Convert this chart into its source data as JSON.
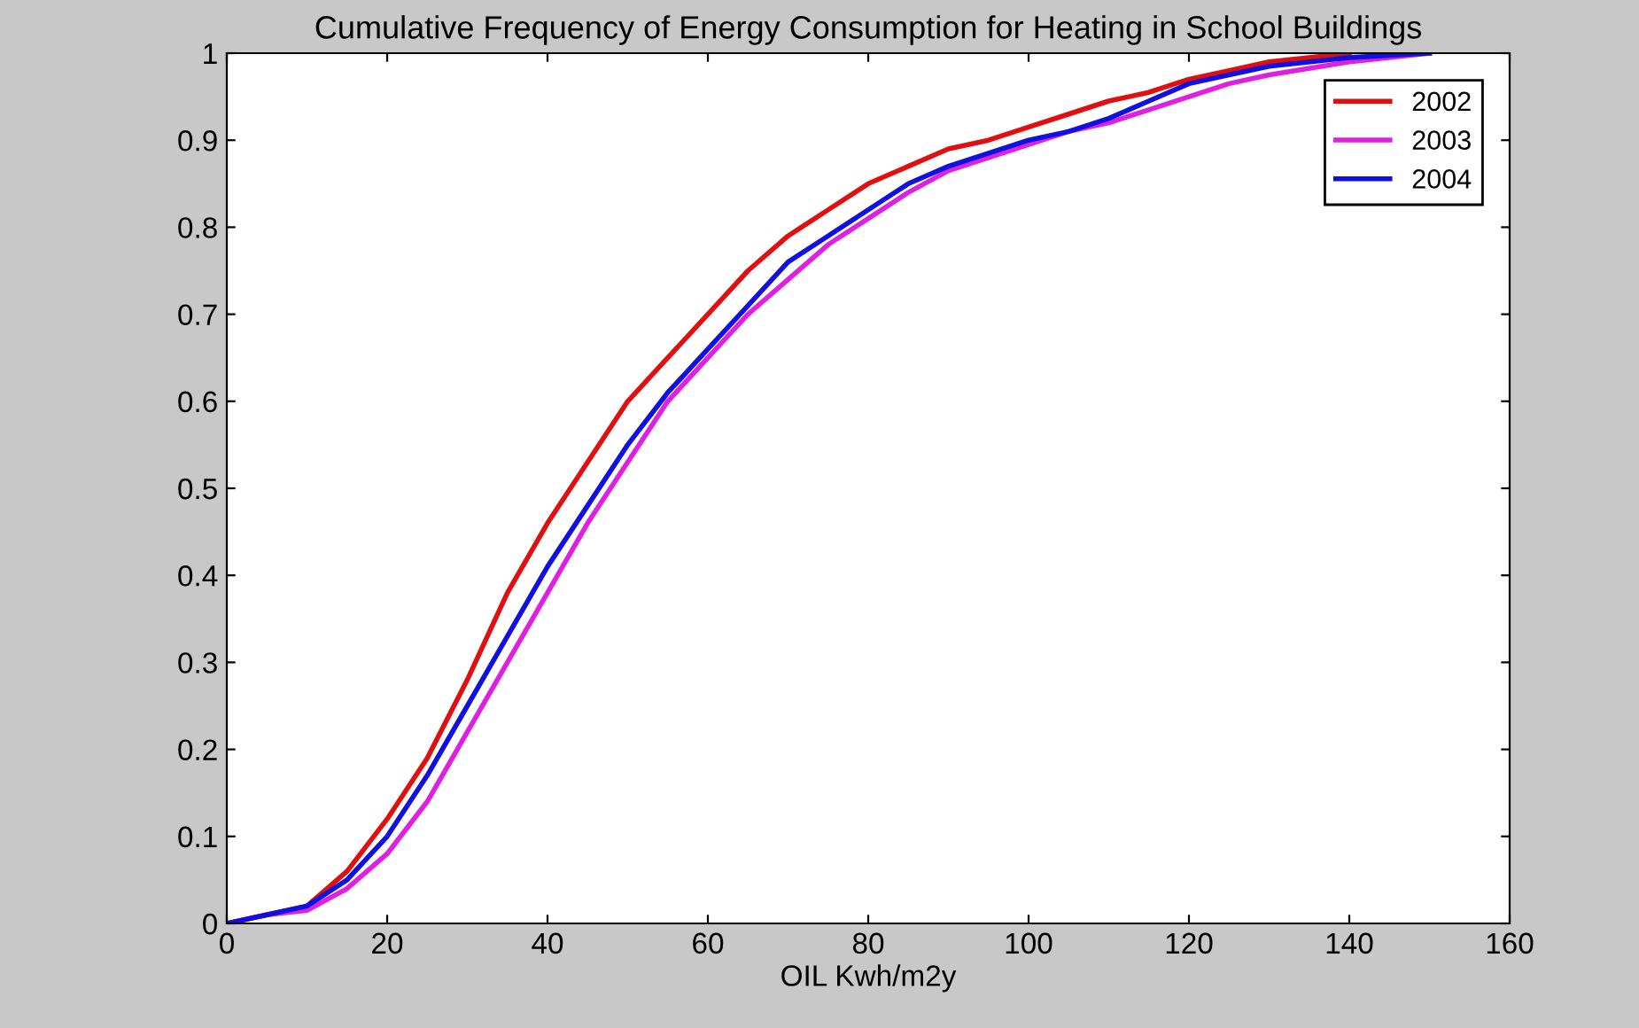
{
  "chart_data": {
    "type": "line",
    "title": "Cumulative Frequency of Energy Consumption for Heating in School Buildings",
    "xlabel": "OIL Kwh/m2y",
    "xlim": [
      0,
      160
    ],
    "xticks": [
      0,
      20,
      40,
      60,
      80,
      100,
      120,
      140,
      160
    ],
    "ylim": [
      0,
      1
    ],
    "yticks": [
      0,
      0.1,
      0.2,
      0.3,
      0.4,
      0.5,
      0.6,
      0.7,
      0.8,
      0.9,
      1
    ],
    "grid": false,
    "legend": "top right",
    "marker": "none",
    "line_style": "solid",
    "series": [
      {
        "name": "2002",
        "color": "#e01010",
        "x": [
          0,
          5,
          10,
          15,
          20,
          25,
          30,
          35,
          40,
          45,
          50,
          55,
          60,
          65,
          70,
          75,
          80,
          85,
          90,
          95,
          100,
          105,
          110,
          115,
          120,
          125,
          130,
          135,
          140
        ],
        "values": [
          0,
          0.01,
          0.02,
          0.06,
          0.12,
          0.19,
          0.28,
          0.38,
          0.46,
          0.53,
          0.6,
          0.65,
          0.7,
          0.75,
          0.79,
          0.82,
          0.85,
          0.87,
          0.89,
          0.9,
          0.915,
          0.93,
          0.945,
          0.955,
          0.97,
          0.98,
          0.99,
          0.995,
          1
        ]
      },
      {
        "name": "2003",
        "color": "#e020e0",
        "x": [
          0,
          5,
          10,
          15,
          20,
          25,
          30,
          35,
          40,
          45,
          50,
          55,
          60,
          65,
          70,
          75,
          80,
          85,
          90,
          95,
          100,
          105,
          110,
          115,
          120,
          125,
          130,
          140,
          150
        ],
        "values": [
          0,
          0.01,
          0.015,
          0.04,
          0.08,
          0.14,
          0.22,
          0.3,
          0.38,
          0.46,
          0.53,
          0.6,
          0.65,
          0.7,
          0.74,
          0.78,
          0.81,
          0.84,
          0.865,
          0.88,
          0.895,
          0.91,
          0.92,
          0.935,
          0.95,
          0.965,
          0.975,
          0.99,
          1
        ]
      },
      {
        "name": "2004",
        "color": "#1010e0",
        "x": [
          0,
          5,
          10,
          15,
          20,
          25,
          30,
          35,
          40,
          45,
          50,
          55,
          60,
          65,
          70,
          75,
          80,
          85,
          90,
          95,
          100,
          105,
          110,
          115,
          120,
          125,
          130,
          140,
          150
        ],
        "values": [
          0,
          0.01,
          0.02,
          0.05,
          0.1,
          0.17,
          0.25,
          0.33,
          0.41,
          0.48,
          0.55,
          0.61,
          0.66,
          0.71,
          0.76,
          0.79,
          0.82,
          0.85,
          0.87,
          0.885,
          0.9,
          0.91,
          0.925,
          0.945,
          0.965,
          0.975,
          0.985,
          0.995,
          1
        ]
      }
    ]
  }
}
